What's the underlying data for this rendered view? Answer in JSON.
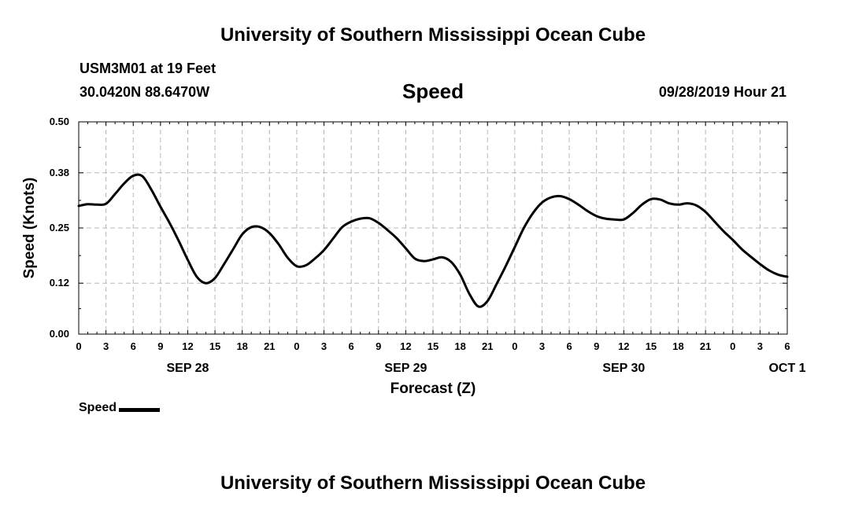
{
  "header": {
    "title": "University of Southern Mississippi Ocean Cube",
    "station": "USM3M01 at 19 Feet",
    "location": "30.0420N 88.6470W",
    "parameter": "Speed",
    "issued": "09/28/2019 Hour 21"
  },
  "footer": {
    "title": "University of Southern Mississippi Ocean Cube"
  },
  "legend": {
    "label": "Speed"
  },
  "chart_data": {
    "type": "line",
    "xlabel": "Forecast (Z)",
    "ylabel": "Speed (Knots)",
    "x_unit": "hours",
    "xlim": [
      0,
      78
    ],
    "ylim": [
      0,
      0.5
    ],
    "y_ticks": [
      "0.00",
      "0.12",
      "0.25",
      "0.38",
      "0.50"
    ],
    "x_tick_labels": [
      "0",
      "3",
      "6",
      "9",
      "12",
      "15",
      "18",
      "21",
      "0",
      "3",
      "6",
      "9",
      "12",
      "15",
      "18",
      "21",
      "0",
      "3",
      "6",
      "9",
      "12",
      "15",
      "18",
      "21",
      "0",
      "3",
      "6"
    ],
    "date_labels": [
      {
        "label": "SEP 28",
        "hour": 12
      },
      {
        "label": "SEP 29",
        "hour": 36
      },
      {
        "label": "SEP 30",
        "hour": 60
      },
      {
        "label": "OCT 1",
        "hour": 78
      }
    ],
    "grid": true,
    "legend_position": "bottom-left",
    "series": [
      {
        "name": "Speed",
        "color": "#000000",
        "x": [
          0,
          1,
          2,
          3,
          4,
          5,
          6,
          7,
          8,
          9,
          10,
          11,
          12,
          13,
          14,
          15,
          16,
          17,
          18,
          19,
          20,
          21,
          22,
          23,
          24,
          25,
          26,
          27,
          28,
          29,
          30,
          31,
          32,
          33,
          34,
          35,
          36,
          37,
          38,
          39,
          40,
          41,
          42,
          43,
          44,
          45,
          46,
          47,
          48,
          49,
          50,
          51,
          52,
          53,
          54,
          55,
          56,
          57,
          58,
          59,
          60,
          61,
          62,
          63,
          64,
          65,
          66,
          67,
          68,
          69,
          70,
          71,
          72,
          73,
          74,
          75,
          76,
          77,
          78
        ],
        "values": [
          0.302,
          0.306,
          0.305,
          0.307,
          0.33,
          0.355,
          0.373,
          0.372,
          0.34,
          0.3,
          0.262,
          0.22,
          0.175,
          0.135,
          0.12,
          0.132,
          0.165,
          0.2,
          0.235,
          0.252,
          0.252,
          0.238,
          0.212,
          0.18,
          0.16,
          0.162,
          0.178,
          0.198,
          0.225,
          0.252,
          0.265,
          0.272,
          0.273,
          0.262,
          0.245,
          0.226,
          0.202,
          0.178,
          0.172,
          0.176,
          0.181,
          0.17,
          0.14,
          0.095,
          0.065,
          0.078,
          0.118,
          0.16,
          0.205,
          0.25,
          0.285,
          0.31,
          0.322,
          0.325,
          0.318,
          0.305,
          0.29,
          0.278,
          0.272,
          0.27,
          0.27,
          0.285,
          0.305,
          0.318,
          0.317,
          0.308,
          0.305,
          0.308,
          0.303,
          0.288,
          0.265,
          0.242,
          0.222,
          0.2,
          0.182,
          0.165,
          0.15,
          0.14,
          0.135
        ]
      }
    ]
  }
}
